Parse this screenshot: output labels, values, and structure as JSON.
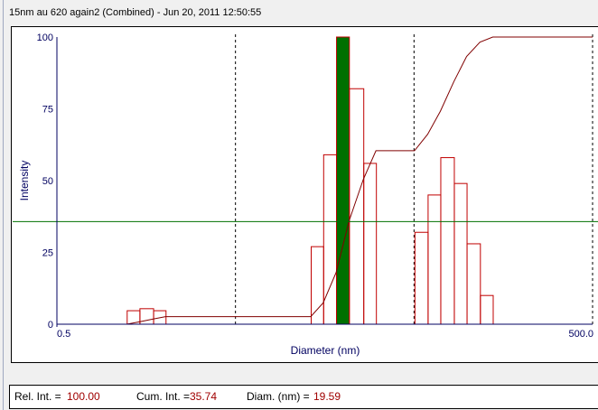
{
  "title": "15nm au  620 again2 (Combined) - Jun 20, 2011   12:50:55",
  "chart_data": {
    "type": "bar",
    "xlabel": "Diameter (nm)",
    "ylabel": "Intensity",
    "xscale": "log",
    "xlim": [
      0.5,
      500.0
    ],
    "ylim": [
      0,
      100
    ],
    "x_tick_labels": [
      "0.5",
      "500.0"
    ],
    "y_ticks": [
      0,
      25,
      50,
      75,
      100
    ],
    "y_tick_labels": [
      "0",
      "25",
      "50",
      "75",
      "100"
    ],
    "dashed_gridlines_x": [
      5,
      50
    ],
    "bars": [
      {
        "d_lo": 1.23,
        "d_hi": 1.45,
        "value": 4.7
      },
      {
        "d_lo": 1.45,
        "d_hi": 1.73,
        "value": 5.4
      },
      {
        "d_lo": 1.73,
        "d_hi": 2.03,
        "value": 4.7
      },
      {
        "d_lo": 13.2,
        "d_hi": 15.5,
        "value": 27
      },
      {
        "d_lo": 15.5,
        "d_hi": 18.3,
        "value": 59
      },
      {
        "d_lo": 18.3,
        "d_hi": 21.6,
        "value": 100,
        "selected": true
      },
      {
        "d_lo": 21.6,
        "d_hi": 26.0,
        "value": 82
      },
      {
        "d_lo": 26.0,
        "d_hi": 30.6,
        "value": 56
      },
      {
        "d_lo": 50.3,
        "d_hi": 59.6,
        "value": 32
      },
      {
        "d_lo": 59.6,
        "d_hi": 70.2,
        "value": 45
      },
      {
        "d_lo": 70.2,
        "d_hi": 83.6,
        "value": 58
      },
      {
        "d_lo": 83.6,
        "d_hi": 98.5,
        "value": 49
      },
      {
        "d_lo": 98.5,
        "d_hi": 117,
        "value": 28
      },
      {
        "d_lo": 117,
        "d_hi": 138,
        "value": 10
      }
    ],
    "cumulative_series": "cumulative intensity (%)",
    "cursor_level": 35.74,
    "colors": {
      "bar": "#c00000",
      "selected_bar": "#007000",
      "cumulative": "#800000",
      "cursor": "#007000",
      "axis": "#000060"
    }
  },
  "status": {
    "rel_int_label": "Rel. Int. =",
    "rel_int_value": "100.00",
    "cum_int_label": "Cum. Int. =",
    "cum_int_value": "35.74",
    "diam_label": "Diam. (nm)  =",
    "diam_value": "19.59"
  }
}
